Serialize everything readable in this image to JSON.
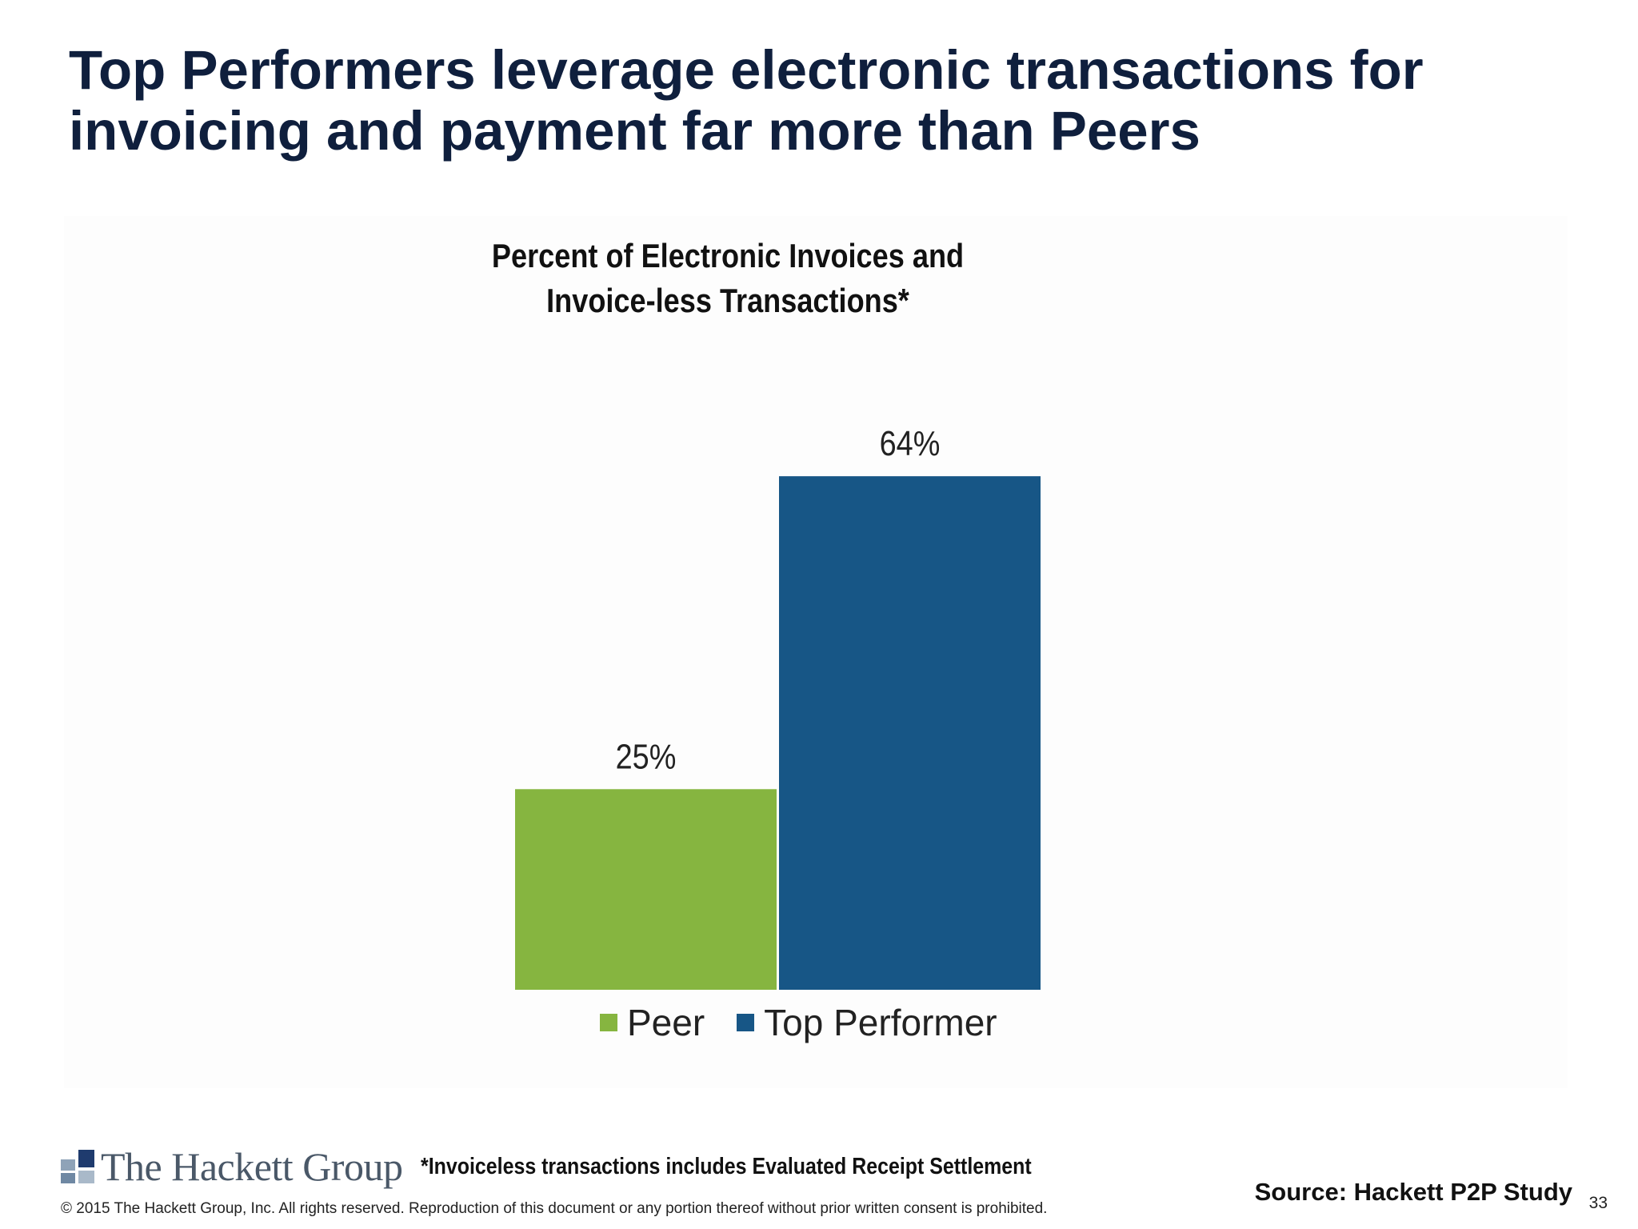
{
  "slide": {
    "title_lines": [
      "Top Performers leverage electronic transactions for",
      "invoicing and payment far more than Peers"
    ],
    "footnote": "*Invoiceless transactions includes Evaluated Receipt Settlement",
    "source": "Source:  Hackett P2P Study",
    "copyright": "© 2015 The Hackett Group, Inc.  All rights reserved. Reproduction of this document or any portion thereof without prior written consent is prohibited.",
    "page_number": "33",
    "logo_text": "The Hackett Group"
  },
  "chart_data": {
    "type": "bar",
    "title_lines": [
      "Percent of Electronic Invoices and",
      "Invoice-less Transactions*"
    ],
    "categories": [
      "Peer",
      "Top Performer"
    ],
    "values": [
      25,
      64
    ],
    "labels": [
      "25%",
      "64%"
    ],
    "colors": [
      "#86b540",
      "#175686"
    ],
    "unit": "%",
    "ylim": [
      0,
      70
    ],
    "legend_position": "bottom",
    "grid": false
  },
  "colors": {
    "title": "#0f1f3d",
    "logo_accent": "#1f3b6e"
  }
}
